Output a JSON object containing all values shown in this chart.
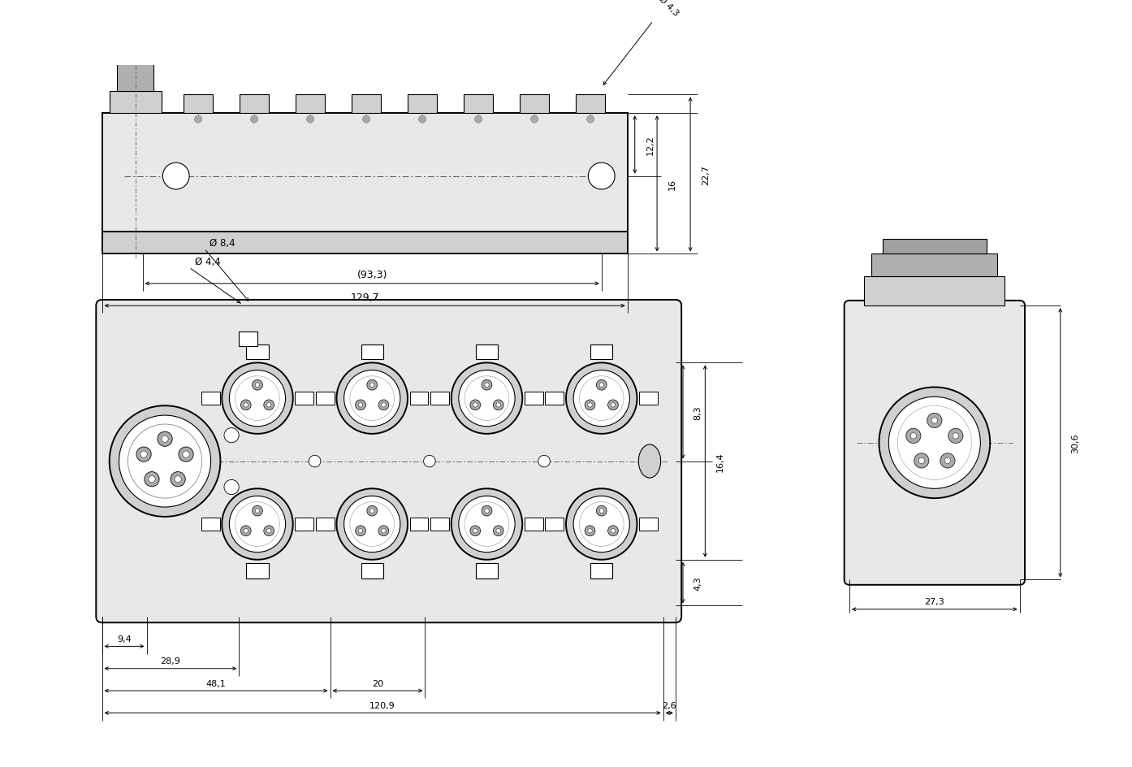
{
  "bg_color": "#ffffff",
  "line_color": "#000000",
  "top_view": {
    "dim_933_label": "(93,3)",
    "dim_1297_label": "129,7",
    "dim_phi43_label": "Ø 4,3",
    "dim_122_label": "12,2",
    "dim_16_label": "16",
    "dim_227_label": "22,7"
  },
  "front_view": {
    "dim_84_label": "Ø 8,4",
    "dim_44_label": "Ø 4,4",
    "dim_94_label": "9,4",
    "dim_289_label": "28,9",
    "dim_481_label": "48,1",
    "dim_1209_label": "120,9",
    "dim_26_label": "2,6",
    "dim_20_label": "20",
    "dim_83_label": "8,3",
    "dim_164_label": "16,4",
    "dim_43_label": "4,3"
  },
  "side_view": {
    "dim_306_label": "30,6",
    "dim_273_label": "27,3"
  },
  "font_size_dim": 9,
  "lw_main": 1.4,
  "lw_thin": 0.8,
  "gray_fill": "#e8e8e8",
  "gray_mid": "#d0d0d0",
  "gray_dark": "#b0b0b0"
}
